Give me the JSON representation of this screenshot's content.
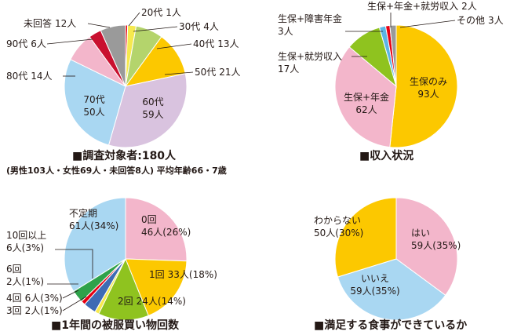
{
  "chart_data": [
    {
      "type": "pie",
      "title": "■調査対象者:180人",
      "subtitle": "(男性103人・女性69人・未回答8人) 平均年齢66・7歳",
      "categories": [
        "20代",
        "30代",
        "40代",
        "50代",
        "60代",
        "70代",
        "80代",
        "90代",
        "未回答"
      ],
      "values": [
        1,
        4,
        13,
        21,
        59,
        50,
        14,
        6,
        12
      ],
      "value_labels": [
        "1人",
        "4人",
        "13人",
        "21人",
        "59人",
        "50人",
        "14人",
        "6人",
        "12人"
      ],
      "colors": [
        "#e60012",
        "#f6e94e",
        "#b4d46c",
        "#fcc800",
        "#d9c3df",
        "#a9d7f2",
        "#f3b6cb",
        "#c9102f",
        "#9a9a9a"
      ]
    },
    {
      "type": "pie",
      "title": "■収入状況",
      "categories": [
        "生保のみ",
        "生保+年金",
        "生保+就労収入",
        "生保+障害年金",
        "生保+年金+就労収入",
        "その他"
      ],
      "values": [
        93,
        62,
        17,
        3,
        2,
        3
      ],
      "value_labels": [
        "93人",
        "62人",
        "17人",
        "3人",
        "2人",
        "3人"
      ],
      "colors": [
        "#fcc800",
        "#f3b6cb",
        "#8fc31f",
        "#5bb5e5",
        "#e60012",
        "#9a9a9a"
      ]
    },
    {
      "type": "pie",
      "title": "■1年間の被服買い物回数",
      "categories": [
        "0回",
        "1回",
        "2回",
        "3回",
        "4回",
        "6回",
        "10回以上",
        "不定期"
      ],
      "values": [
        46,
        33,
        24,
        2,
        6,
        2,
        6,
        61
      ],
      "value_labels": [
        "46人(26%)",
        "33人(18%)",
        "24人(14%)",
        "2人(1%)",
        "6人(3%)",
        "2人(1%)",
        "6人(3%)",
        "61人(34%)"
      ],
      "colors": [
        "#f3b6cb",
        "#fcc800",
        "#8fc31f",
        "#f6e94e",
        "#3e6bb4",
        "#e60012",
        "#2ea24a",
        "#a9d7f2"
      ]
    },
    {
      "type": "pie",
      "title": "■満足する食事ができているか",
      "categories": [
        "はい",
        "いいえ",
        "わからない"
      ],
      "values": [
        59,
        59,
        50
      ],
      "value_labels": [
        "59人(35%)",
        "59人(35%)",
        "50人(30%)"
      ],
      "colors": [
        "#f3b6cb",
        "#a9d7f2",
        "#fcc800"
      ]
    }
  ]
}
